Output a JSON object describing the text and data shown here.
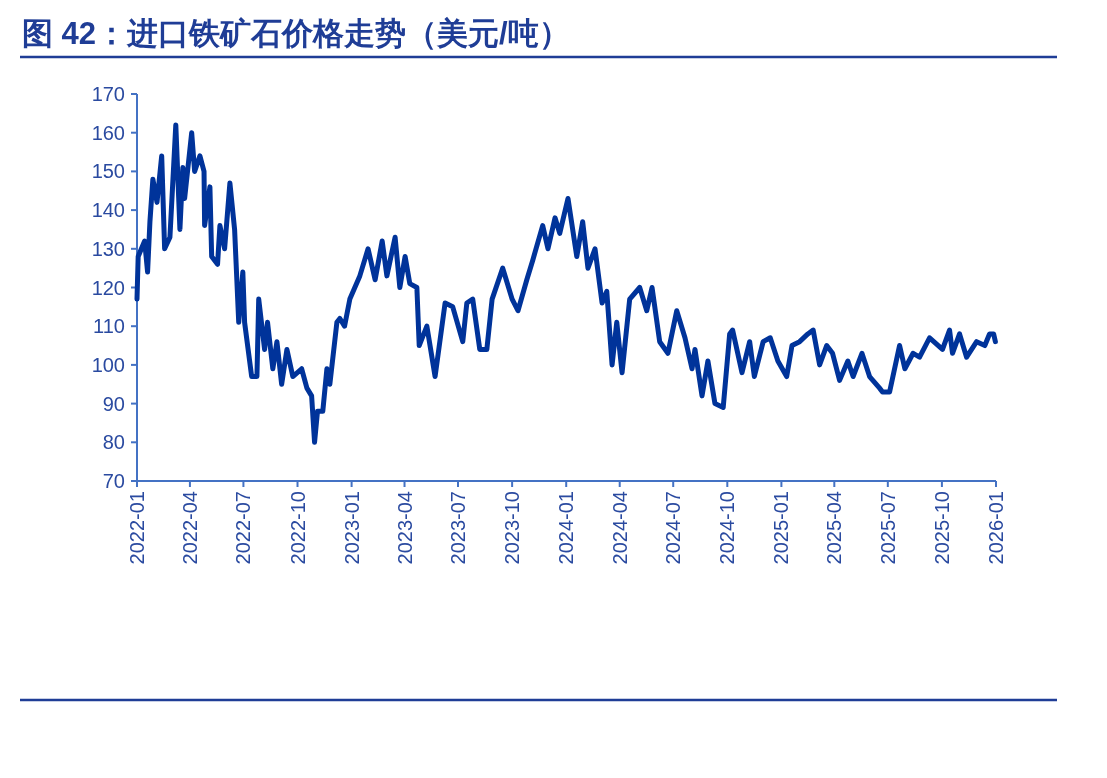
{
  "chart_data": {
    "type": "line",
    "title": "图 42：进口铁矿石价格走势（美元/吨）",
    "x": [
      "2022-01-01",
      "2022-01-03",
      "2022-01-14",
      "2022-01-19",
      "2022-01-23",
      "2022-01-28",
      "2022-02-04",
      "2022-02-12",
      "2022-02-17",
      "2022-02-26",
      "2022-03-08",
      "2022-03-15",
      "2022-03-20",
      "2022-03-23",
      "2022-04-04",
      "2022-04-09",
      "2022-04-18",
      "2022-04-25",
      "2022-04-26",
      "2022-05-05",
      "2022-05-08",
      "2022-05-18",
      "2022-05-22",
      "2022-05-30",
      "2022-06-08",
      "2022-06-16",
      "2022-06-23",
      "2022-06-30",
      "2022-07-03",
      "2022-07-15",
      "2022-07-24",
      "2022-07-27",
      "2022-08-06",
      "2022-08-11",
      "2022-08-20",
      "2022-08-27",
      "2022-09-04",
      "2022-09-13",
      "2022-09-23",
      "2022-10-08",
      "2022-10-17",
      "2022-10-25",
      "2022-10-30",
      "2022-11-04",
      "2022-11-13",
      "2022-11-20",
      "2022-11-25",
      "2022-12-07",
      "2022-12-12",
      "2022-12-20",
      "2022-12-29",
      "2023-01-15",
      "2023-01-29",
      "2023-02-10",
      "2023-02-22",
      "2023-03-02",
      "2023-03-16",
      "2023-03-24",
      "2023-04-02",
      "2023-04-10",
      "2023-04-22",
      "2023-04-26",
      "2023-05-09",
      "2023-05-23",
      "2023-06-09",
      "2023-06-22",
      "2023-07-09",
      "2023-07-16",
      "2023-07-26",
      "2023-08-07",
      "2023-08-19",
      "2023-08-28",
      "2023-09-15",
      "2023-10-01",
      "2023-10-11",
      "2023-10-26",
      "2023-11-05",
      "2023-11-22",
      "2023-12-01",
      "2023-12-13",
      "2023-12-21",
      "2024-01-04",
      "2024-01-19",
      "2024-01-29",
      "2024-02-07",
      "2024-02-19",
      "2024-03-02",
      "2024-03-10",
      "2024-03-19",
      "2024-03-27",
      "2024-04-05",
      "2024-04-18",
      "2024-05-05",
      "2024-05-17",
      "2024-05-26",
      "2024-06-08",
      "2024-06-22",
      "2024-07-07",
      "2024-07-21",
      "2024-08-02",
      "2024-08-07",
      "2024-08-19",
      "2024-08-29",
      "2024-09-10",
      "2024-09-24",
      "2024-10-05",
      "2024-10-10",
      "2024-10-26",
      "2024-11-08",
      "2024-11-16",
      "2024-12-01",
      "2024-12-13",
      "2024-12-26",
      "2025-01-10",
      "2025-01-19",
      "2025-02-01",
      "2025-02-15",
      "2025-02-24",
      "2025-03-07",
      "2025-03-19",
      "2025-03-29",
      "2025-04-10",
      "2025-04-24",
      "2025-05-03",
      "2025-05-18",
      "2025-05-31",
      "2025-06-17",
      "2025-06-22",
      "2025-07-04",
      "2025-07-21",
      "2025-07-30",
      "2025-08-13",
      "2025-08-24",
      "2025-09-10",
      "2025-10-02",
      "2025-10-14",
      "2025-10-19",
      "2025-10-31",
      "2025-11-12",
      "2025-11-29",
      "2025-12-13",
      "2025-12-21",
      "2025-12-28",
      "2025-12-31"
    ],
    "series": [
      {
        "color": "#00339a",
        "values": [
          117,
          128,
          132,
          124,
          137,
          148,
          142,
          154,
          130,
          133,
          162,
          135,
          151,
          143,
          160,
          150,
          154,
          150,
          136,
          146,
          128,
          126,
          136,
          130,
          147,
          135,
          111,
          124,
          111,
          97,
          97,
          117,
          104,
          111,
          99,
          106,
          95,
          104,
          97,
          99,
          94,
          92,
          80,
          88,
          88,
          99,
          95,
          111,
          112,
          110,
          117,
          123,
          130,
          122,
          132,
          123,
          133,
          120,
          128,
          121,
          120,
          105,
          110,
          97,
          116,
          115,
          106,
          116,
          117,
          104,
          104,
          117,
          125,
          117,
          114,
          122,
          127,
          136,
          130,
          138,
          134,
          143,
          128,
          137,
          125,
          130,
          116,
          119,
          100,
          111,
          98,
          117,
          120,
          114,
          120,
          106,
          103,
          114,
          107,
          99,
          104,
          92,
          101,
          90,
          89,
          108,
          109,
          98,
          106,
          97,
          106,
          107,
          101,
          97,
          105,
          106,
          108,
          109,
          100,
          105,
          103,
          96,
          101,
          97,
          103,
          97,
          94,
          93,
          93,
          105,
          99,
          103,
          102,
          107,
          104,
          109,
          103,
          108,
          102,
          106,
          105,
          108,
          108,
          106
        ]
      }
    ],
    "xlim": [
      "2022-01-01",
      "2026-01-01"
    ],
    "xticks": [
      {
        "value": "2022-01-01",
        "label": "2022-01"
      },
      {
        "value": "2022-04-01",
        "label": "2022-04"
      },
      {
        "value": "2022-07-01",
        "label": "2022-07"
      },
      {
        "value": "2022-10-01",
        "label": "2022-10"
      },
      {
        "value": "2023-01-01",
        "label": "2023-01"
      },
      {
        "value": "2023-04-01",
        "label": "2023-04"
      },
      {
        "value": "2023-07-01",
        "label": "2023-07"
      },
      {
        "value": "2023-10-01",
        "label": "2023-10"
      },
      {
        "value": "2024-01-01",
        "label": "2024-01"
      },
      {
        "value": "2024-04-01",
        "label": "2024-04"
      },
      {
        "value": "2024-07-01",
        "label": "2024-07"
      },
      {
        "value": "2024-10-01",
        "label": "2024-10"
      },
      {
        "value": "2025-01-01",
        "label": "2025-01"
      },
      {
        "value": "2025-04-01",
        "label": "2025-04"
      },
      {
        "value": "2025-07-01",
        "label": "2025-07"
      },
      {
        "value": "2025-10-01",
        "label": "2025-10"
      },
      {
        "value": "2026-01-01",
        "label": "2026-01"
      }
    ],
    "ylim": [
      70,
      170
    ],
    "yticks": [
      70,
      80,
      90,
      100,
      110,
      120,
      130,
      140,
      150,
      160,
      170
    ],
    "grid": false,
    "line_style": "solid",
    "marker": "none"
  }
}
